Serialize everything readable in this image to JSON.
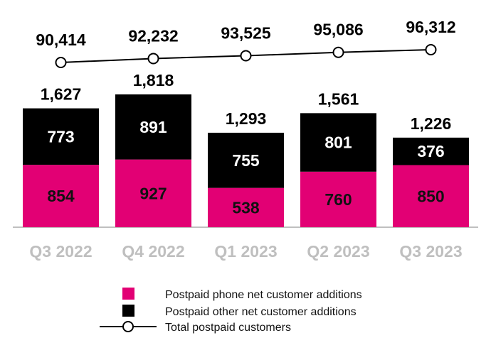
{
  "chart_data": {
    "type": "bar",
    "stacked": true,
    "categories": [
      "Q3 2022",
      "Q4 2022",
      "Q1 2023",
      "Q2 2023",
      "Q3 2023"
    ],
    "series": [
      {
        "name": "Postpaid phone net customer additions",
        "values": [
          854,
          927,
          538,
          760,
          850
        ],
        "color": "#e20074"
      },
      {
        "name": "Postpaid other net customer additions",
        "values": [
          773,
          891,
          755,
          801,
          376
        ],
        "color": "#000000"
      }
    ],
    "totals": [
      "1,627",
      "1,818",
      "1,293",
      "1,561",
      "1,226"
    ],
    "line_series": {
      "name": "Total postpaid customers",
      "values": [
        90414,
        92232,
        93525,
        95086,
        96312
      ],
      "labels": [
        "90,414",
        "92,232",
        "93,525",
        "95,086",
        "96,312"
      ]
    },
    "legend": [
      "Postpaid phone net customer additions",
      "Postpaid other net customer additions",
      "Total postpaid customers"
    ],
    "legend_position": "bottom",
    "colors": {
      "phone": "#e20074",
      "other": "#000000",
      "axis_label": "#bfbfbf"
    }
  }
}
